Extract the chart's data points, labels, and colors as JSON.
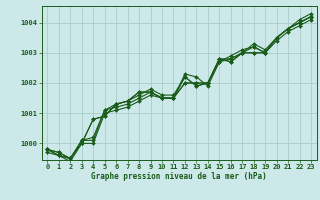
{
  "title": "Graphe pression niveau de la mer (hPa)",
  "background_color": "#cce8e8",
  "grid_color": "#aacccc",
  "line_color": "#1a5c1a",
  "marker_color": "#1a5c1a",
  "xlim": [
    -0.5,
    23.5
  ],
  "ylim": [
    999.45,
    1004.55
  ],
  "yticks": [
    1000,
    1001,
    1002,
    1003,
    1004
  ],
  "xticks": [
    0,
    1,
    2,
    3,
    4,
    5,
    6,
    7,
    8,
    9,
    10,
    11,
    12,
    13,
    14,
    15,
    16,
    17,
    18,
    19,
    20,
    21,
    22,
    23
  ],
  "series": [
    [
      999.8,
      999.7,
      999.5,
      1000.1,
      1000.1,
      1001.1,
      1001.2,
      1001.3,
      1001.5,
      1001.7,
      1001.5,
      1001.5,
      1002.2,
      1001.9,
      1002.0,
      1002.8,
      1002.8,
      1003.0,
      1003.2,
      1003.0,
      1003.5,
      1003.8,
      1004.0,
      1004.2
    ],
    [
      999.7,
      999.6,
      999.4,
      1000.0,
      1000.0,
      1001.0,
      1001.1,
      1001.2,
      1001.4,
      1001.6,
      1001.5,
      1001.5,
      1002.3,
      1002.2,
      1001.9,
      1002.7,
      1002.9,
      1003.1,
      1003.2,
      1003.0,
      1003.4,
      1003.7,
      1003.9,
      1004.1
    ],
    [
      999.8,
      999.7,
      999.5,
      1000.1,
      1000.2,
      1001.1,
      1001.3,
      1001.4,
      1001.6,
      1001.8,
      1001.6,
      1001.6,
      1002.2,
      1001.9,
      1002.0,
      1002.7,
      1002.8,
      1003.0,
      1003.3,
      1003.1,
      1003.5,
      1003.8,
      1004.1,
      1004.3
    ],
    [
      999.8,
      999.6,
      999.5,
      1000.0,
      1000.8,
      1000.9,
      1001.3,
      1001.4,
      1001.7,
      1001.7,
      1001.5,
      1001.5,
      1002.0,
      1002.0,
      1002.0,
      1002.8,
      1002.7,
      1003.0,
      1003.0,
      1003.0,
      1003.5,
      1003.8,
      1004.0,
      1004.2
    ],
    [
      999.8,
      999.6,
      999.5,
      1000.0,
      1000.8,
      1000.9,
      1001.3,
      1001.4,
      1001.7,
      1001.7,
      1001.5,
      1001.5,
      1002.0,
      1002.0,
      1002.0,
      1002.8,
      1002.7,
      1003.0,
      1003.0,
      1003.0,
      1003.5,
      1003.8,
      1004.0,
      1004.2
    ]
  ],
  "title_fontsize": 5.5,
  "tick_fontsize": 5.0,
  "linewidth": 0.8,
  "markersize": 2.0
}
